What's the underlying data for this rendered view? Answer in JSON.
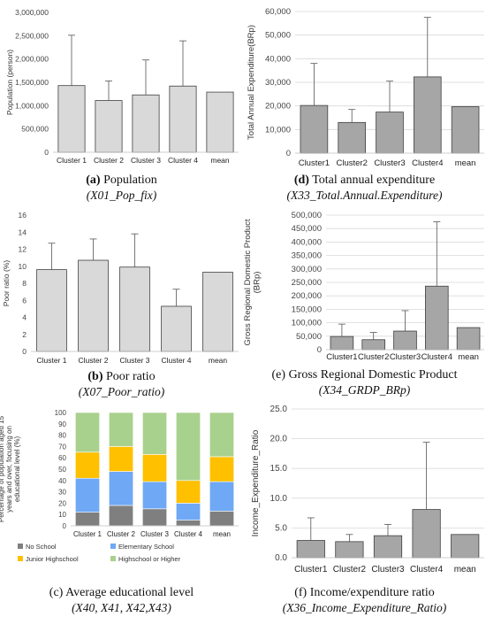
{
  "chart_data": [
    {
      "id": "a",
      "type": "bar",
      "categories": [
        "Cluster 1",
        "Cluster 2",
        "Cluster 3",
        "Cluster 4",
        "mean"
      ],
      "values": [
        1430000,
        1110000,
        1230000,
        1420000,
        1290000
      ],
      "error_upper": [
        2510000,
        1530000,
        1980000,
        2390000,
        1290000
      ],
      "ylabel": "Population (person)",
      "ylim": [
        0,
        3000000
      ],
      "yticks": [
        0,
        500000,
        1000000,
        1500000,
        2000000,
        2500000,
        3000000
      ],
      "ytick_labels": [
        "0",
        "500,000",
        "1,000,000",
        "1,500,000",
        "2,000,000",
        "2,500,000",
        "3,000,000"
      ],
      "bar_color": "#d9d9d9",
      "grid": false,
      "caption_letter": "(a)",
      "caption_text": "Population",
      "caption_var": "(X01_Pop_fix)"
    },
    {
      "id": "d",
      "type": "bar",
      "categories": [
        "Cluster1",
        "Cluster2",
        "Cluster3",
        "Cluster4",
        "mean"
      ],
      "values": [
        20200,
        13000,
        17400,
        32300,
        19700
      ],
      "error_upper": [
        38000,
        18500,
        30500,
        57500,
        19700
      ],
      "ylabel": "Total Annual Expenditure(BRp)",
      "ylim": [
        0,
        60000
      ],
      "yticks": [
        0,
        10000,
        20000,
        30000,
        40000,
        50000,
        60000
      ],
      "ytick_labels": [
        "0",
        "10,000",
        "20,000",
        "30,000",
        "40,000",
        "50,000",
        "60,000"
      ],
      "bar_color": "#a6a6a6",
      "grid": true,
      "caption_letter": "(d)",
      "caption_text": "Total annual expenditure",
      "caption_var": "(X33_Total.Annual.Expenditure)"
    },
    {
      "id": "b",
      "type": "bar",
      "categories": [
        "Cluster 1",
        "Cluster 2",
        "Cluster 3",
        "Cluster 4",
        "mean"
      ],
      "values": [
        9.6,
        10.7,
        9.9,
        5.3,
        9.3
      ],
      "error_upper": [
        12.7,
        13.2,
        13.8,
        7.3,
        9.3
      ],
      "ylabel": "Poor ratio (%)",
      "ylim": [
        0,
        16
      ],
      "yticks": [
        0,
        2,
        4,
        6,
        8,
        10,
        12,
        14,
        16
      ],
      "ytick_labels": [
        "0",
        "2",
        "4",
        "6",
        "8",
        "10",
        "12",
        "14",
        "16"
      ],
      "bar_color": "#d9d9d9",
      "grid": false,
      "caption_letter": "(b)",
      "caption_text": "Poor ratio",
      "caption_var": "(X07_Poor_ratio)"
    },
    {
      "id": "e",
      "type": "bar",
      "categories": [
        "Cluster1",
        "Cluster2",
        "Cluster3",
        "Cluster4",
        "mean"
      ],
      "values": [
        49000,
        37000,
        69000,
        236000,
        82000
      ],
      "error_upper": [
        95000,
        64000,
        145000,
        475000,
        82000
      ],
      "ylabel": "Gross Regional Domestic Product (BRp)",
      "ylim": [
        0,
        500000
      ],
      "yticks": [
        0,
        50000,
        100000,
        150000,
        200000,
        250000,
        300000,
        350000,
        400000,
        450000,
        500000
      ],
      "ytick_labels": [
        "0",
        "50,000",
        "100,000",
        "150,000",
        "200,000",
        "250,000",
        "300,000",
        "350,000",
        "400,000",
        "450,000",
        "500,000"
      ],
      "bar_color": "#a6a6a6",
      "grid": true,
      "caption_letter": "(e)",
      "caption_text": "Gross Regional Domestic Product",
      "caption_var": "(X34_GRDP_BRp)"
    },
    {
      "id": "c",
      "type": "bar",
      "stacked": true,
      "categories": [
        "Cluster 1",
        "Cluster 2",
        "Cluster 3",
        "Cluster 4",
        "mean"
      ],
      "series": [
        {
          "name": "No School",
          "color": "#7f7f7f",
          "values": [
            12,
            18,
            15,
            5,
            13
          ]
        },
        {
          "name": "Elementary School",
          "color": "#6fa8f5",
          "values": [
            30,
            30,
            24,
            15,
            26
          ]
        },
        {
          "name": "Junior Highschool",
          "color": "#ffc000",
          "values": [
            23,
            22,
            24,
            20,
            22
          ]
        },
        {
          "name": "Highschool or Higher",
          "color": "#a9d18e",
          "values": [
            35,
            30,
            37,
            60,
            39
          ]
        }
      ],
      "ylabel": "Percentage of population aged 15 years and over, focusing on educational level (%)",
      "ylim": [
        0,
        100
      ],
      "yticks": [
        0,
        10,
        20,
        30,
        40,
        50,
        60,
        70,
        80,
        90,
        100
      ],
      "ytick_labels": [
        "0",
        "10",
        "20",
        "30",
        "40",
        "50",
        "60",
        "70",
        "80",
        "90",
        "100"
      ],
      "legend_position": "bottom",
      "grid": false,
      "caption_letter": "(c)",
      "caption_text": "Average educational level",
      "caption_var": "(X40, X41, X42,X43)"
    },
    {
      "id": "f",
      "type": "bar",
      "categories": [
        "Cluster1",
        "Cluster2",
        "Cluster3",
        "Cluster4",
        "mean"
      ],
      "values": [
        2.9,
        2.7,
        3.7,
        8.1,
        3.9
      ],
      "error_upper": [
        6.7,
        3.9,
        5.6,
        19.4,
        3.9
      ],
      "ylabel": "Income_Expenditure_Ratio",
      "ylim": [
        0,
        25
      ],
      "yticks": [
        0,
        5,
        10,
        15,
        20,
        25
      ],
      "ytick_labels": [
        "0.0",
        "5.0",
        "10.0",
        "15.0",
        "20.0",
        "25.0"
      ],
      "bar_color": "#a6a6a6",
      "grid": true,
      "caption_letter": "(f)",
      "caption_text": "Income/expenditure ratio",
      "caption_var": "(X36_Income_Expenditure_Ratio)"
    }
  ]
}
